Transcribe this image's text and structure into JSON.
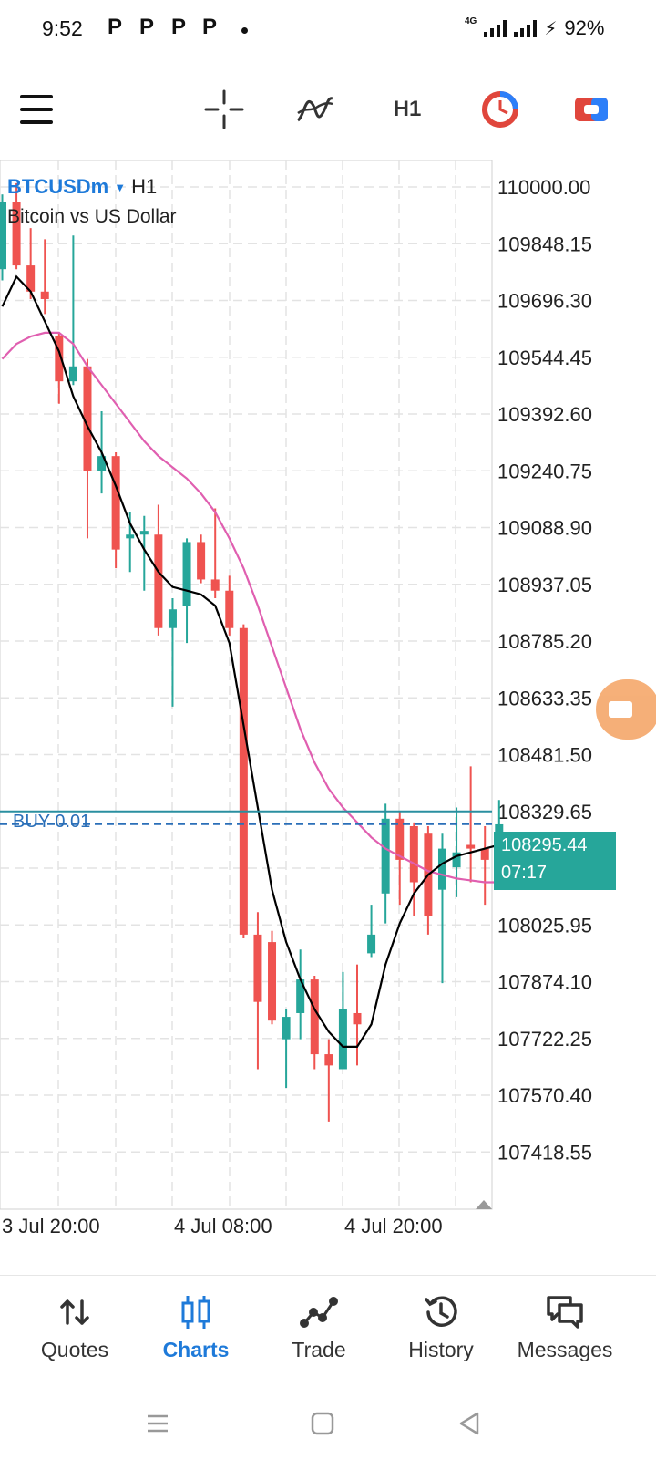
{
  "status_bar": {
    "time": "9:52",
    "notif_glyphs": [
      "P",
      "P",
      "P",
      "P"
    ],
    "network_type": "4G",
    "battery": "92%"
  },
  "toolbar": {
    "timeframe": "H1",
    "icons": [
      "menu-icon",
      "crosshair-icon",
      "indicators-icon",
      "timeframe-button",
      "clock-icon",
      "trade-toggle-icon"
    ]
  },
  "symbol": {
    "name": "BTCUSDm",
    "timeframe": "H1",
    "description": "Bitcoin vs US Dollar"
  },
  "buy_position": {
    "label": "BUY 0.01",
    "price": 108295.44
  },
  "current_price": {
    "price": "108295.44",
    "countdown": "07:17"
  },
  "colors": {
    "bull": "#26a69a",
    "bear": "#ef5350",
    "ma_fast": "#000000",
    "ma_slow": "#e05fb0",
    "accent": "#1e7ad9",
    "grid": "#e3e3e3"
  },
  "chart_data": {
    "type": "candlestick",
    "price_axis": [
      "110000.00",
      "109848.15",
      "109696.30",
      "109544.45",
      "109392.60",
      "109240.75",
      "109088.90",
      "108937.05",
      "108785.20",
      "108633.35",
      "108481.50",
      "108329.65",
      "108177.80",
      "108025.95",
      "107874.10",
      "107722.25",
      "107570.40",
      "107418.55"
    ],
    "time_axis": [
      "3 Jul 20:00",
      "4 Jul 08:00",
      "4 Jul 20:00"
    ],
    "candles": [
      {
        "o": 109780,
        "h": 109980,
        "l": 109750,
        "c": 109960
      },
      {
        "o": 109960,
        "h": 110010,
        "l": 109780,
        "c": 109790
      },
      {
        "o": 109790,
        "h": 109890,
        "l": 109700,
        "c": 109720
      },
      {
        "o": 109720,
        "h": 109860,
        "l": 109660,
        "c": 109700
      },
      {
        "o": 109600,
        "h": 109610,
        "l": 109420,
        "c": 109480
      },
      {
        "o": 109480,
        "h": 109870,
        "l": 109470,
        "c": 109520
      },
      {
        "o": 109520,
        "h": 109540,
        "l": 109060,
        "c": 109240
      },
      {
        "o": 109240,
        "h": 109400,
        "l": 109180,
        "c": 109280
      },
      {
        "o": 109280,
        "h": 109290,
        "l": 108980,
        "c": 109030
      },
      {
        "o": 109060,
        "h": 109130,
        "l": 108970,
        "c": 109070
      },
      {
        "o": 109070,
        "h": 109120,
        "l": 108920,
        "c": 109080
      },
      {
        "o": 109070,
        "h": 109150,
        "l": 108800,
        "c": 108820
      },
      {
        "o": 108820,
        "h": 108900,
        "l": 108610,
        "c": 108870
      },
      {
        "o": 108880,
        "h": 109060,
        "l": 108780,
        "c": 109050
      },
      {
        "o": 109050,
        "h": 109070,
        "l": 108940,
        "c": 108950
      },
      {
        "o": 108950,
        "h": 109140,
        "l": 108900,
        "c": 108920
      },
      {
        "o": 108920,
        "h": 108960,
        "l": 108800,
        "c": 108820
      },
      {
        "o": 108820,
        "h": 108830,
        "l": 107990,
        "c": 108000
      },
      {
        "o": 108000,
        "h": 108060,
        "l": 107640,
        "c": 107820
      },
      {
        "o": 107980,
        "h": 108010,
        "l": 107760,
        "c": 107770
      },
      {
        "o": 107720,
        "h": 107800,
        "l": 107590,
        "c": 107780
      },
      {
        "o": 107790,
        "h": 107960,
        "l": 107720,
        "c": 107880
      },
      {
        "o": 107880,
        "h": 107890,
        "l": 107640,
        "c": 107680
      },
      {
        "o": 107680,
        "h": 107720,
        "l": 107500,
        "c": 107650
      },
      {
        "o": 107640,
        "h": 107900,
        "l": 107660,
        "c": 107800
      },
      {
        "o": 107790,
        "h": 107920,
        "l": 107650,
        "c": 107760
      },
      {
        "o": 107950,
        "h": 108080,
        "l": 107940,
        "c": 108000
      },
      {
        "o": 108110,
        "h": 108350,
        "l": 108030,
        "c": 108310
      },
      {
        "o": 108310,
        "h": 108330,
        "l": 108080,
        "c": 108200
      },
      {
        "o": 108290,
        "h": 108300,
        "l": 108050,
        "c": 108140
      },
      {
        "o": 108270,
        "h": 108290,
        "l": 108000,
        "c": 108050
      },
      {
        "o": 108120,
        "h": 108270,
        "l": 107870,
        "c": 108230
      },
      {
        "o": 108180,
        "h": 108340,
        "l": 108100,
        "c": 108220
      },
      {
        "o": 108240,
        "h": 108450,
        "l": 108140,
        "c": 108230
      },
      {
        "o": 108230,
        "h": 108290,
        "l": 108080,
        "c": 108200
      },
      {
        "o": 108200,
        "h": 108360,
        "l": 108160,
        "c": 108295
      }
    ],
    "ma_fast": [
      109680,
      109760,
      109720,
      109640,
      109560,
      109440,
      109360,
      109290,
      109200,
      109100,
      109030,
      108970,
      108930,
      108920,
      108910,
      108880,
      108780,
      108560,
      108340,
      108120,
      107980,
      107880,
      107800,
      107740,
      107700,
      107700,
      107760,
      107920,
      108030,
      108110,
      108160,
      108190,
      108210,
      108220,
      108230,
      108240
    ],
    "ma_slow": [
      109540,
      109580,
      109600,
      109610,
      109610,
      109580,
      109520,
      109470,
      109420,
      109370,
      109320,
      109280,
      109250,
      109220,
      109180,
      109130,
      109060,
      108980,
      108880,
      108770,
      108660,
      108550,
      108460,
      108390,
      108340,
      108300,
      108260,
      108230,
      108210,
      108190,
      108170,
      108160,
      108150,
      108145,
      108140,
      108140
    ]
  },
  "bottom_nav": {
    "items": [
      {
        "label": "Quotes",
        "icon": "quotes-icon",
        "active": false
      },
      {
        "label": "Charts",
        "icon": "charts-icon",
        "active": true
      },
      {
        "label": "Trade",
        "icon": "trade-icon",
        "active": false
      },
      {
        "label": "History",
        "icon": "history-icon",
        "active": false
      },
      {
        "label": "Messages",
        "icon": "messages-icon",
        "active": false
      }
    ]
  }
}
